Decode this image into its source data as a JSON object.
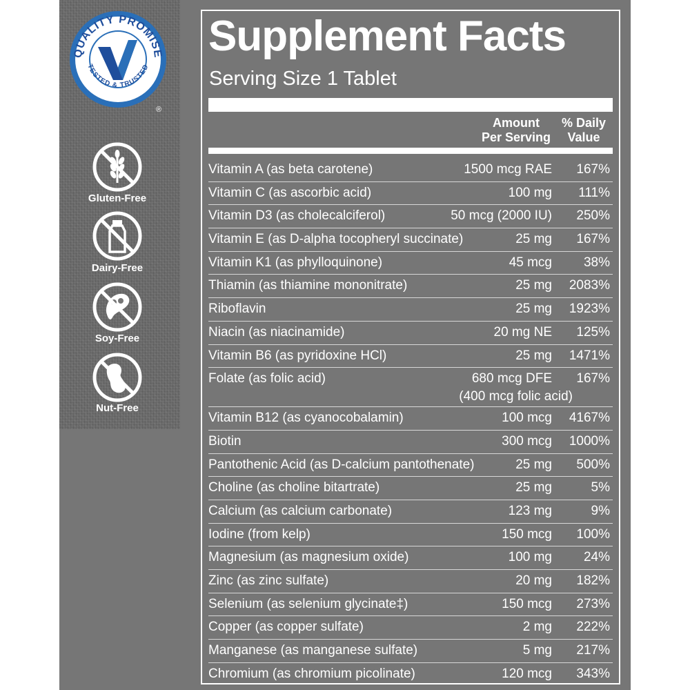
{
  "badges": {
    "seal_text_top": "QUALITY PROMISE",
    "seal_text_bottom": "TESTED & TRUSTED",
    "seal_mark": "®",
    "items": [
      {
        "label": "Gluten-Free",
        "icon": "wheat-crossed-icon"
      },
      {
        "label": "Dairy-Free",
        "icon": "milk-bottle-crossed-icon"
      },
      {
        "label": "Soy-Free",
        "icon": "soybean-crossed-icon"
      },
      {
        "label": "Nut-Free",
        "icon": "peanut-crossed-icon"
      }
    ]
  },
  "facts": {
    "title": "Supplement Facts",
    "serving": "Serving Size 1 Tablet",
    "header": {
      "amount_line1": "Amount",
      "amount_line2": "Per Serving",
      "dv_line1": "% Daily",
      "dv_line2": "Value"
    },
    "rows": [
      {
        "name": "Vitamin A (as beta carotene)",
        "amount": "1500 mcg RAE",
        "dv": "167%"
      },
      {
        "name": "Vitamin C (as ascorbic acid)",
        "amount": "100 mg",
        "dv": "111%"
      },
      {
        "name": "Vitamin D3 (as cholecalciferol)",
        "amount": "50 mcg (2000 IU)",
        "dv": "250%"
      },
      {
        "name": "Vitamin E (as D-alpha tocopheryl succinate)",
        "amount": "25 mg",
        "dv": "167%"
      },
      {
        "name": "Vitamin K1 (as phylloquinone)",
        "amount": "45 mcg",
        "dv": "38%"
      },
      {
        "name": "Thiamin (as thiamine mononitrate)",
        "amount": "25 mg",
        "dv": "2083%"
      },
      {
        "name": "Riboflavin",
        "amount": "25 mg",
        "dv": "1923%"
      },
      {
        "name": "Niacin (as niacinamide)",
        "amount": "20 mg NE",
        "dv": "125%"
      },
      {
        "name": "Vitamin B6 (as pyridoxine HCl)",
        "amount": "25 mg",
        "dv": "1471%"
      },
      {
        "name": "Folate (as folic acid)",
        "amount": "680 mcg DFE",
        "amount2": "(400 mcg folic acid)",
        "dv": "167%"
      },
      {
        "name": "Vitamin B12 (as cyanocobalamin)",
        "amount": "100 mcg",
        "dv": "4167%"
      },
      {
        "name": "Biotin",
        "amount": "300 mcg",
        "dv": "1000%"
      },
      {
        "name": "Pantothenic Acid (as D-calcium pantothenate)",
        "amount": "25 mg",
        "dv": "500%"
      },
      {
        "name": "Choline (as choline bitartrate)",
        "amount": "25 mg",
        "dv": "5%"
      },
      {
        "name": "Calcium (as calcium carbonate)",
        "amount": "123 mg",
        "dv": "9%"
      },
      {
        "name": "Iodine (from kelp)",
        "amount": "150 mcg",
        "dv": "100%"
      },
      {
        "name": "Magnesium (as magnesium oxide)",
        "amount": "100 mg",
        "dv": "24%"
      },
      {
        "name": "Zinc (as zinc sulfate)",
        "amount": "20 mg",
        "dv": "182%"
      },
      {
        "name": "Selenium (as selenium glycinate‡)",
        "amount": "150 mcg",
        "dv": "273%"
      },
      {
        "name": "Copper (as copper sulfate)",
        "amount": "2 mg",
        "dv": "222%"
      },
      {
        "name": "Manganese (as manganese sulfate)",
        "amount": "5 mg",
        "dv": "217%"
      },
      {
        "name": "Chromium (as chromium picolinate)",
        "amount": "120 mcg",
        "dv": "343%"
      }
    ]
  },
  "colors": {
    "panel_bg": "#767676",
    "sidebar_bg": "#6a6a6a",
    "seal_blue": "#1f4e9c",
    "seal_ring": "#2a6fb8"
  }
}
